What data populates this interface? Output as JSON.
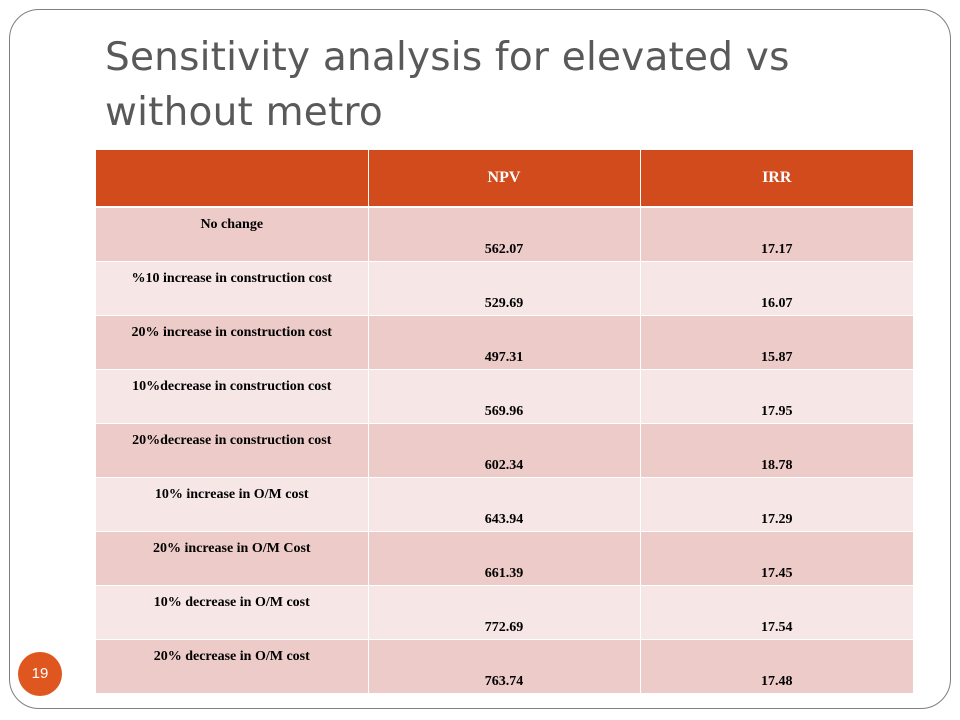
{
  "slide": {
    "title_line1": "Sensitivity analysis for elevated vs",
    "title_line2": "without metro",
    "page_number": "19"
  },
  "table": {
    "headers": [
      "",
      "NPV",
      "IRR"
    ],
    "rows": [
      {
        "scenario": "No change",
        "npv": "562.07",
        "irr": "17.17"
      },
      {
        "scenario": "%10 increase in construction cost",
        "npv": "529.69",
        "irr": "16.07"
      },
      {
        "scenario": "20% increase in construction cost",
        "npv": "497.31",
        "irr": "15.87"
      },
      {
        "scenario": "10%decrease in construction cost",
        "npv": "569.96",
        "irr": "17.95"
      },
      {
        "scenario": "20%decrease in construction cost",
        "npv": "602.34",
        "irr": "18.78"
      },
      {
        "scenario": "10% increase in O/M cost",
        "npv": "643.94",
        "irr": "17.29"
      },
      {
        "scenario": "20% increase in O/M Cost",
        "npv": "661.39",
        "irr": "17.45"
      },
      {
        "scenario": "10% decrease in O/M cost",
        "npv": "772.69",
        "irr": "17.54"
      },
      {
        "scenario": "20% decrease in O/M cost",
        "npv": "763.74",
        "irr": "17.48"
      }
    ]
  },
  "colors": {
    "header_fill": "#d24b1c",
    "row_odd": "#eccbc8",
    "row_even": "#f6e6e5",
    "badge": "#e0561f",
    "title_text": "#595959"
  }
}
